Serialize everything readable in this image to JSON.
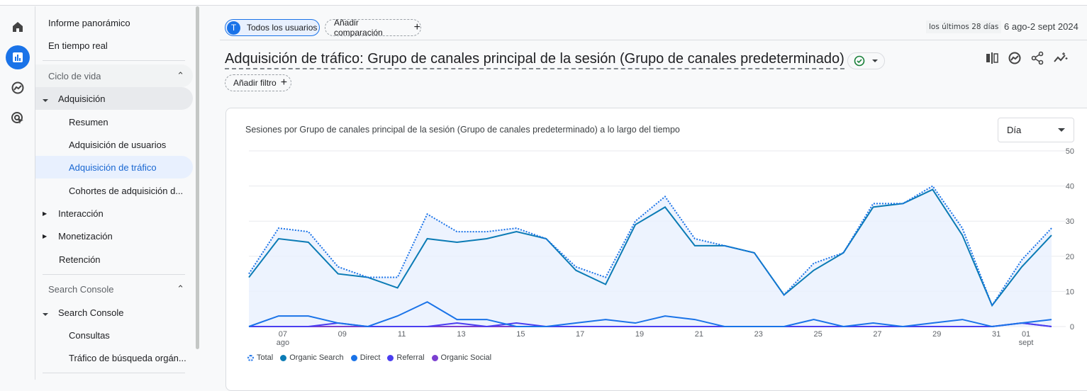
{
  "rail": {
    "items": [
      "home-icon",
      "reports-icon",
      "explore-icon",
      "advertising-icon"
    ],
    "active": "reports-icon"
  },
  "sidebar": {
    "top": [
      "Informe panorámico",
      "En tiempo real"
    ],
    "section1": "Ciclo de vida",
    "acquisition": "Adquisición",
    "acquisition_items": [
      "Resumen",
      "Adquisición de usuarios",
      "Adquisición de tráfico",
      "Cohortes de adquisición d..."
    ],
    "selected": "Adquisición de tráfico",
    "lifecycle_others": [
      "Interacción",
      "Monetización",
      "Retención"
    ],
    "section2": "Search Console",
    "search_console": "Search Console",
    "search_console_items": [
      "Consultas",
      "Tráfico de búsqueda orgán..."
    ]
  },
  "header": {
    "segment_avatar": "T",
    "segment": "Todos los usuarios",
    "add_comparison": "Añadir comparación",
    "date_badge": "los últimos 28 días",
    "date_range": "6 ago-2 sept 2024",
    "title": "Adquisición de tráfico: Grupo de canales principal de la sesión (Grupo de canales predeterminado)",
    "add_filter": "Añadir filtro",
    "toolbar_icons": [
      "compare-columns-icon",
      "insights-icon",
      "share-icon",
      "anomaly-icon"
    ]
  },
  "card": {
    "granularity": "Día"
  },
  "chart_data": {
    "type": "line",
    "title": "Sesiones por Grupo de canales principal de la sesión (Grupo de canales predeterminado) a lo largo del tiempo",
    "x": [
      "2024-08-06",
      "2024-08-07",
      "2024-08-08",
      "2024-08-09",
      "2024-08-10",
      "2024-08-11",
      "2024-08-12",
      "2024-08-13",
      "2024-08-14",
      "2024-08-15",
      "2024-08-16",
      "2024-08-17",
      "2024-08-18",
      "2024-08-19",
      "2024-08-20",
      "2024-08-21",
      "2024-08-22",
      "2024-08-23",
      "2024-08-24",
      "2024-08-25",
      "2024-08-26",
      "2024-08-27",
      "2024-08-28",
      "2024-08-29",
      "2024-08-30",
      "2024-08-31",
      "2024-09-01",
      "2024-09-02"
    ],
    "x_tick_labels": [
      {
        "day": "07",
        "month": "ago",
        "index": 1
      },
      {
        "day": "09",
        "index": 3
      },
      {
        "day": "11",
        "index": 5
      },
      {
        "day": "13",
        "index": 7
      },
      {
        "day": "15",
        "index": 9
      },
      {
        "day": "17",
        "index": 11
      },
      {
        "day": "19",
        "index": 13
      },
      {
        "day": "21",
        "index": 15
      },
      {
        "day": "23",
        "index": 17
      },
      {
        "day": "25",
        "index": 19
      },
      {
        "day": "27",
        "index": 21
      },
      {
        "day": "29",
        "index": 23
      },
      {
        "day": "31",
        "index": 25
      },
      {
        "day": "01",
        "month": "sept",
        "index": 26
      }
    ],
    "y_ticks": [
      "0",
      "10",
      "20",
      "30",
      "40",
      "50"
    ],
    "ylim": [
      0,
      50
    ],
    "y_axis_side": "right",
    "grid": true,
    "legend_position": "bottom-left",
    "series": [
      {
        "name": "Total",
        "color": "#1a73e8",
        "style": "dotted",
        "fill": "#e8f0fe",
        "values": [
          15,
          28,
          27,
          17,
          14,
          14,
          32,
          27,
          27,
          28,
          25,
          17,
          14,
          30,
          37,
          25,
          23,
          21,
          9,
          18,
          21,
          35,
          35,
          40,
          28,
          6,
          19,
          28
        ]
      },
      {
        "name": "Organic Search",
        "color": "#0b7bb5",
        "values": [
          14,
          25,
          24,
          15,
          14,
          11,
          25,
          24,
          25,
          27,
          25,
          16,
          12,
          29,
          34,
          23,
          23,
          21,
          9,
          16,
          21,
          34,
          35,
          39,
          26,
          6,
          17,
          26
        ]
      },
      {
        "name": "Direct",
        "color": "#1a73e8",
        "values": [
          0,
          3,
          3,
          1,
          0,
          3,
          7,
          2,
          2,
          0,
          0,
          1,
          2,
          1,
          3,
          2,
          0,
          0,
          0,
          2,
          0,
          1,
          0,
          1,
          2,
          0,
          1,
          2
        ]
      },
      {
        "name": "Referral",
        "color": "#4a3ef0",
        "values": [
          0,
          0,
          0,
          1,
          0,
          0,
          0,
          1,
          0,
          1,
          0,
          0,
          0,
          0,
          0,
          0,
          0,
          0,
          0,
          0,
          0,
          0,
          0,
          0,
          0,
          0,
          1,
          0
        ]
      },
      {
        "name": "Organic Social",
        "color": "#7b3fd0",
        "values": [
          0,
          0,
          0,
          0,
          0,
          0,
          0,
          0,
          0,
          0,
          0,
          0,
          0,
          0,
          0,
          0,
          0,
          0,
          0,
          0,
          0,
          0,
          0,
          0,
          0,
          0,
          1,
          0
        ]
      }
    ]
  }
}
